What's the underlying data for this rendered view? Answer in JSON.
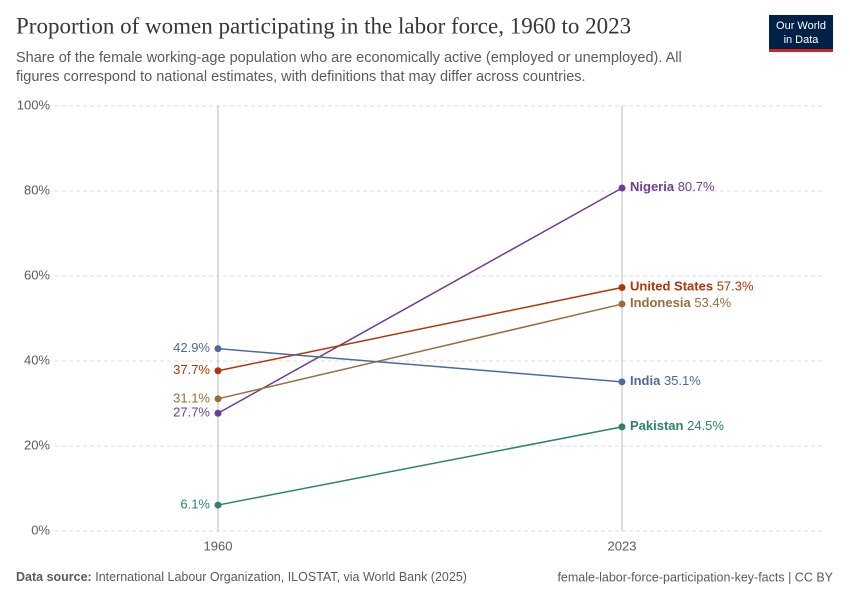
{
  "logo": [
    "Our World",
    "in Data"
  ],
  "chart_data": {
    "type": "line",
    "title": "Proportion of women participating in the labor force, 1960 to 2023",
    "subtitle": [
      "Share of the female working-age population who are economically active (employed or unemployed). All",
      "figures correspond to national estimates, with definitions that may differ across countries."
    ],
    "categories": [
      "1960",
      "2023"
    ],
    "series": [
      {
        "name": "Nigeria",
        "color": "#6d3e91",
        "values": [
          27.7,
          80.7
        ],
        "value_labels": [
          "27.7%",
          "80.7%"
        ]
      },
      {
        "name": "United States",
        "color": "#b13507",
        "values": [
          37.7,
          57.3
        ],
        "value_labels": [
          "37.7%",
          "57.3%"
        ]
      },
      {
        "name": "Indonesia",
        "color": "#986d39",
        "values": [
          31.1,
          53.4
        ],
        "value_labels": [
          "31.1%",
          "53.4%"
        ]
      },
      {
        "name": "India",
        "color": "#4c6a9c",
        "values": [
          42.9,
          35.1
        ],
        "value_labels": [
          "42.9%",
          "35.1%"
        ]
      },
      {
        "name": "Pakistan",
        "color": "#2c8465",
        "values": [
          6.1,
          24.5
        ],
        "value_labels": [
          "6.1%",
          "24.5%"
        ]
      }
    ],
    "ylim": [
      0,
      100
    ],
    "yticks": [
      {
        "value": 0,
        "label": "0%"
      },
      {
        "value": 20,
        "label": "20%"
      },
      {
        "value": 40,
        "label": "40%"
      },
      {
        "value": 60,
        "label": "60%"
      },
      {
        "value": 80,
        "label": "80%"
      },
      {
        "value": 100,
        "label": "100%"
      }
    ],
    "grid": true,
    "source_label": "Data source:",
    "source": "International Labour Organization, ILOSTAT, via World Bank (2025)",
    "footer_right": "female-labor-force-participation-key-facts | CC BY"
  }
}
